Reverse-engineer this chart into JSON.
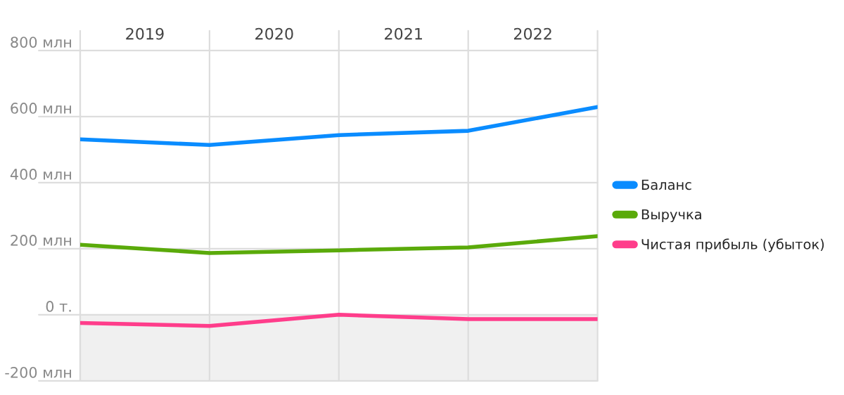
{
  "chart_data": {
    "type": "line",
    "x": [
      2019,
      2020,
      2021,
      2022,
      2023
    ],
    "series": [
      {
        "name": "Баланс",
        "color": "#0a8cff",
        "values": [
          531,
          514,
          544,
          557,
          629
        ]
      },
      {
        "name": "Выручка",
        "color": "#5aaa0a",
        "values": [
          212,
          187,
          195,
          204,
          238
        ]
      },
      {
        "name": "Чистая прибыль (убыток)",
        "color": "#ff3d8b",
        "values": [
          -25,
          -34,
          0,
          -13,
          -13
        ]
      }
    ],
    "xlim": [
      2019,
      2023
    ],
    "xticks": [
      {
        "value": 2019,
        "label": null
      },
      {
        "value": 2019.5,
        "label": "2019"
      },
      {
        "value": 2020,
        "label": null
      },
      {
        "value": 2020.5,
        "label": "2020"
      },
      {
        "value": 2021,
        "label": null
      },
      {
        "value": 2021.5,
        "label": "2021"
      },
      {
        "value": 2022,
        "label": null
      },
      {
        "value": 2022.5,
        "label": "2022"
      },
      {
        "value": 2023,
        "label": null
      }
    ],
    "ylim": [
      -200,
      800
    ],
    "yticks": [
      {
        "value": -200,
        "label": "-200 млн"
      },
      {
        "value": 0,
        "label": "0 т."
      },
      {
        "value": 200,
        "label": "200 млн"
      },
      {
        "value": 400,
        "label": "400 млн"
      },
      {
        "value": 600,
        "label": "600 млн"
      },
      {
        "value": 800,
        "label": "800 млн"
      }
    ],
    "bands": [
      {
        "axis": "y",
        "from": -200,
        "to": 0,
        "color": "#f0f0f0"
      }
    ],
    "grid": true,
    "legend": "right",
    "marker": "none",
    "line_style": "solid"
  }
}
